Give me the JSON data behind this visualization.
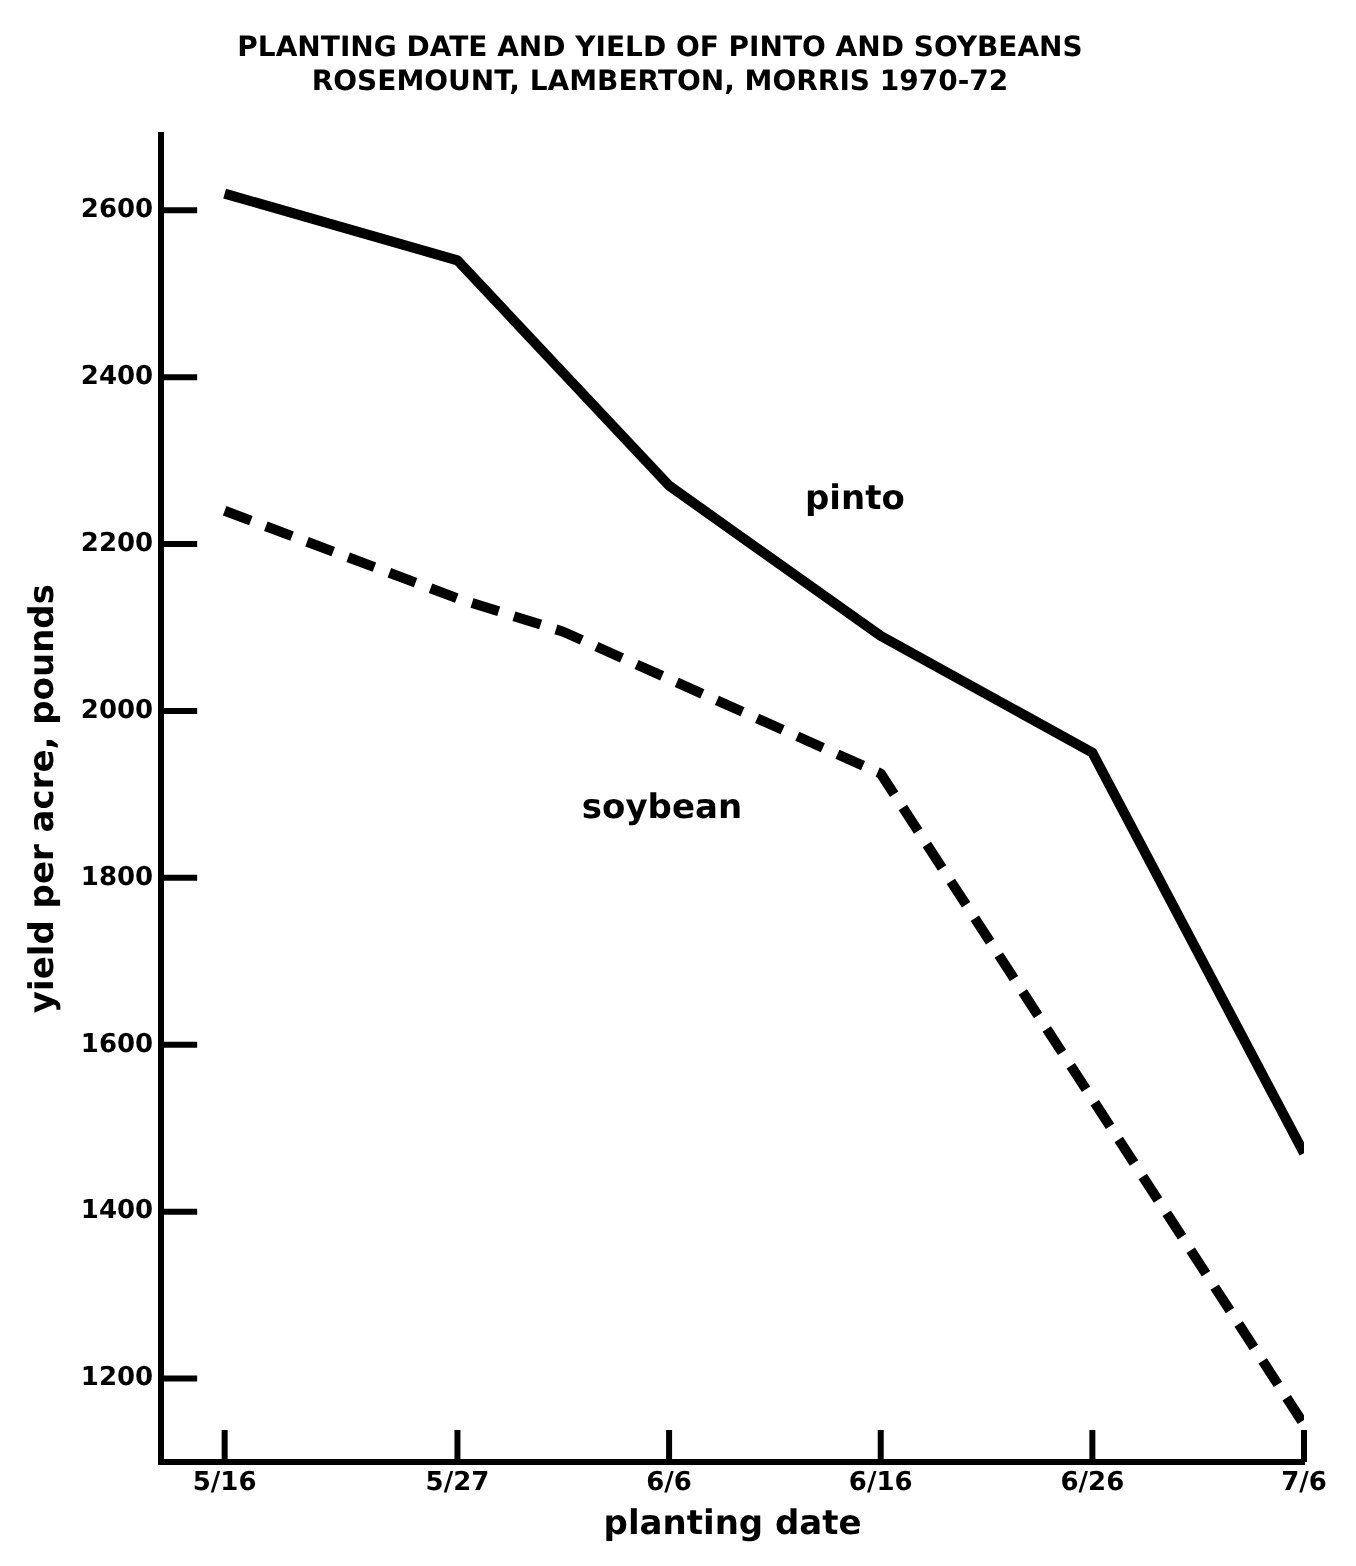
{
  "chart_data": {
    "type": "line",
    "title": "PLANTING DATE AND YIELD OF PINTO AND SOYBEANS",
    "subtitle": "ROSEMOUNT, LAMBERTON, MORRIS 1970-72",
    "xlabel": "planting date",
    "ylabel": "yield per acre, pounds",
    "series": [
      {
        "name": "pinto",
        "color": "#000000",
        "line_style": "solid",
        "x": [
          "--05-16",
          "--05-27",
          "--06-06",
          "--06-16",
          "--06-26",
          "--07-06"
        ],
        "values": [
          2620,
          2540,
          2270,
          2090,
          1950,
          1470
        ]
      },
      {
        "name": "soybean",
        "color": "#000000",
        "line_style": "dashed",
        "x": [
          "--05-16",
          "--05-27",
          "--06-01",
          "--06-16",
          "--07-06"
        ],
        "values": [
          2240,
          2135,
          2095,
          1925,
          1145
        ]
      }
    ],
    "xlim": [
      "--05-13",
      "--07-06"
    ],
    "xticks": [
      {
        "value": "--05-16",
        "label": "5/16"
      },
      {
        "value": "--05-27",
        "label": "5/27"
      },
      {
        "value": "--06-06",
        "label": "6/6"
      },
      {
        "value": "--06-16",
        "label": "6/16"
      },
      {
        "value": "--06-26",
        "label": "6/26"
      },
      {
        "value": "--07-06",
        "label": "7/6"
      }
    ],
    "ylim": [
      1100,
      2690
    ],
    "yticks": [
      1200,
      1400,
      1600,
      1800,
      2000,
      2200,
      2400,
      2600
    ],
    "grid": false,
    "legend": false,
    "marker": "none"
  }
}
